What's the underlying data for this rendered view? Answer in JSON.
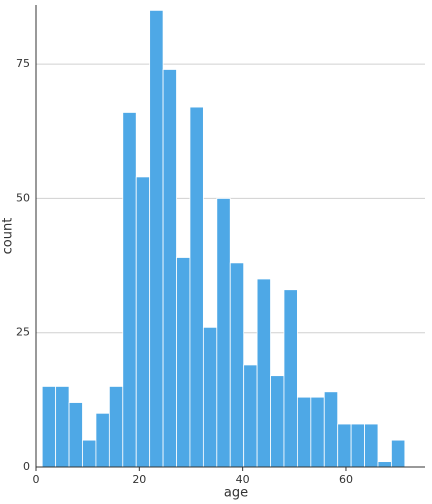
{
  "chart_data": {
    "type": "histogram",
    "x_label": "age",
    "y_label": "count",
    "bins": [
      1.2,
      3.8,
      6.4,
      9.0,
      11.6,
      14.2,
      16.8,
      19.4,
      22.0,
      24.6,
      27.2,
      29.8,
      32.4,
      35.0,
      37.6,
      40.2,
      42.8,
      45.4,
      48.0,
      50.6,
      53.2,
      55.8,
      58.4,
      61.0,
      63.6,
      66.2,
      68.8,
      71.4
    ],
    "values": [
      15,
      15,
      12,
      5,
      10,
      15,
      66,
      54,
      85,
      74,
      39,
      67,
      26,
      50,
      38,
      19,
      35,
      17,
      33,
      13,
      13,
      14,
      8,
      8,
      8,
      1,
      5
    ],
    "color": "#4ea8e6",
    "xlim": [
      0,
      75.3
    ],
    "xticks": [
      0,
      20,
      40,
      60
    ],
    "ylim": [
      0,
      86
    ],
    "yticks": [
      0,
      25,
      50,
      75
    ],
    "grid": true
  }
}
